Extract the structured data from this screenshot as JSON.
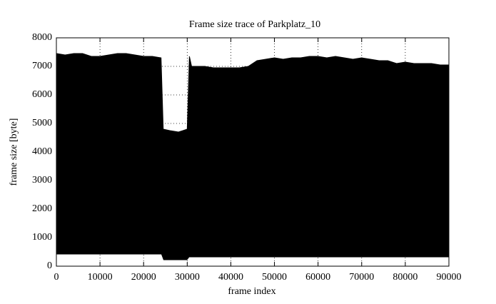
{
  "chart_data": {
    "type": "band",
    "title": "Frame size trace of Parkplatz_10",
    "x_label": "frame index",
    "y_label": "frame size [byte]",
    "x": [
      0,
      2000,
      4000,
      6000,
      8000,
      10000,
      12000,
      14000,
      16000,
      18000,
      20000,
      22000,
      24000,
      24500,
      26000,
      28000,
      30000,
      30500,
      31000,
      34000,
      36000,
      38000,
      40000,
      42000,
      44000,
      46000,
      48000,
      50000,
      52000,
      54000,
      56000,
      58000,
      60000,
      62000,
      64000,
      66000,
      68000,
      70000,
      72000,
      74000,
      76000,
      78000,
      80000,
      82000,
      84000,
      86000,
      88000,
      90000
    ],
    "series": [
      {
        "color": "#000000",
        "values": [
          7450,
          7400,
          7450,
          7450,
          7350,
          7350,
          7400,
          7450,
          7450,
          7400,
          7350,
          7350,
          7300,
          4800,
          4750,
          4700,
          4800,
          7350,
          7000,
          7000,
          6950,
          6950,
          6950,
          6950,
          7000,
          7200,
          7250,
          7300,
          7250,
          7300,
          7300,
          7350,
          7350,
          7300,
          7350,
          7300,
          7250,
          7300,
          7250,
          7200,
          7200,
          7100,
          7150,
          7100,
          7100,
          7100,
          7050,
          7050
        ]
      },
      {
        "color": "#ffffff",
        "values": [
          400,
          400,
          400,
          400,
          400,
          400,
          400,
          400,
          400,
          400,
          400,
          400,
          400,
          200,
          200,
          200,
          200,
          300,
          300,
          300,
          300,
          300,
          300,
          300,
          300,
          300,
          300,
          300,
          300,
          300,
          300,
          300,
          300,
          300,
          300,
          300,
          300,
          300,
          300,
          300,
          300,
          300,
          300,
          300,
          300,
          300,
          300,
          300
        ]
      }
    ],
    "xlim": [
      0,
      90000
    ],
    "xticks": [
      0,
      10000,
      20000,
      30000,
      40000,
      50000,
      60000,
      70000,
      80000,
      90000
    ],
    "ylim": [
      0,
      8000
    ],
    "yticks": [
      0,
      1000,
      2000,
      3000,
      4000,
      5000,
      6000,
      7000,
      8000
    ],
    "grid": true
  }
}
